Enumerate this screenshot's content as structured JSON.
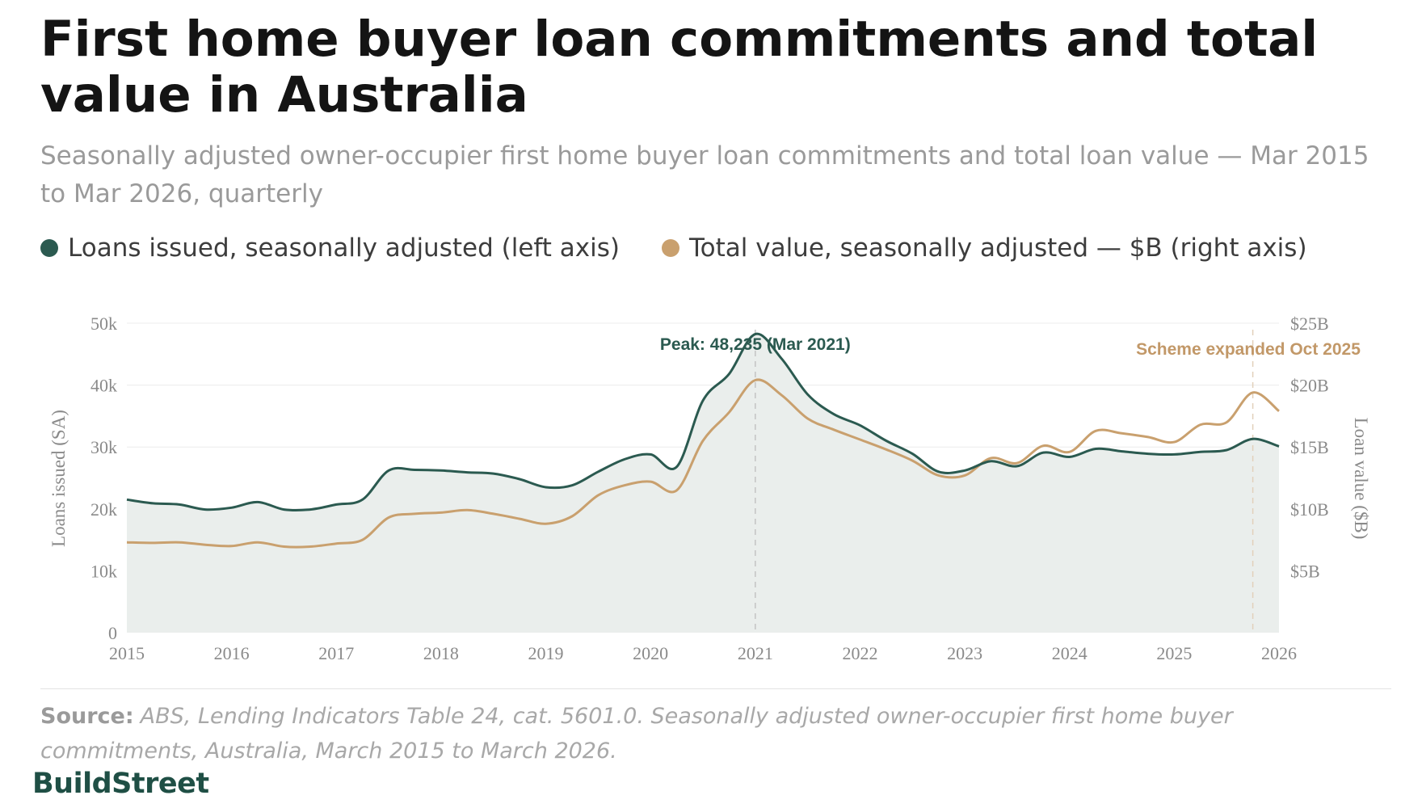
{
  "title": "First home buyer loan commitments and total value in Australia",
  "subtitle": "Seasonally adjusted owner-occupier first home buyer loan commitments and total loan value — Mar 2015 to Mar 2026, quarterly",
  "legend": {
    "loans_label": "Loans issued, seasonally adjusted (left axis)",
    "value_label": "Total value, seasonally adjusted — $B (right axis)"
  },
  "colors": {
    "loans": "#2b5a50",
    "value": "#c9a06e",
    "area_fill": "#eaeeec",
    "grid": "#ececec",
    "axis_text": "#8a8a8a"
  },
  "source": {
    "label": "Source:",
    "text": "ABS, Lending Indicators Table 24, cat. 5601.0. Seasonally adjusted owner-occupier first home buyer commitments, Australia, March 2015 to March 2026."
  },
  "brand": "BuildStreet",
  "chart_data": {
    "type": "line",
    "xlim": [
      2015,
      2026
    ],
    "x_ticks": [
      2015,
      2016,
      2017,
      2018,
      2019,
      2020,
      2021,
      2022,
      2023,
      2024,
      2025,
      2026
    ],
    "x_tick_labels": [
      "2015",
      "2016",
      "2017",
      "2018",
      "2019",
      "2020",
      "2021",
      "2022",
      "2023",
      "2024",
      "2025",
      "2026"
    ],
    "left_axis": {
      "label": "Loans issued (SA)",
      "range": [
        0,
        50000
      ],
      "ticks": [
        0,
        10000,
        20000,
        30000,
        40000,
        50000
      ],
      "tick_labels": [
        "0",
        "10k",
        "20k",
        "30k",
        "40k",
        "50k"
      ]
    },
    "right_axis": {
      "label": "Loan value ($B)",
      "range": [
        0,
        25
      ],
      "ticks": [
        5,
        10,
        15,
        20,
        25
      ],
      "tick_labels": [
        "$5B",
        "$10B",
        "$15B",
        "$20B",
        "$25B"
      ]
    },
    "grid": true,
    "legend_position": "top",
    "series": [
      {
        "name": "Loans issued, seasonally adjusted (left axis)",
        "axis": "left",
        "x": [
          2015.0,
          2015.25,
          2015.5,
          2015.75,
          2016.0,
          2016.25,
          2016.5,
          2016.75,
          2017.0,
          2017.25,
          2017.5,
          2017.75,
          2018.0,
          2018.25,
          2018.5,
          2018.75,
          2019.0,
          2019.25,
          2019.5,
          2019.75,
          2020.0,
          2020.25,
          2020.5,
          2020.75,
          2021.0,
          2021.25,
          2021.5,
          2021.75,
          2022.0,
          2022.25,
          2022.5,
          2022.75,
          2023.0,
          2023.25,
          2023.5,
          2023.75,
          2024.0,
          2024.25,
          2024.5,
          2024.75,
          2025.0,
          2025.25,
          2025.5,
          2025.75,
          2026.0
        ],
        "y": [
          21500,
          20900,
          20700,
          19900,
          20200,
          21100,
          19900,
          19900,
          20700,
          21500,
          26200,
          26300,
          26200,
          25900,
          25700,
          24800,
          23500,
          23800,
          26000,
          28000,
          28800,
          26800,
          37500,
          41800,
          48235,
          44300,
          38500,
          35300,
          33500,
          31000,
          28900,
          26000,
          26200,
          27700,
          26900,
          29100,
          28400,
          29700,
          29300,
          28900,
          28800,
          29200,
          29500,
          31300,
          30100
        ]
      },
      {
        "name": "Total value, seasonally adjusted — $B (right axis)",
        "axis": "right",
        "x": [
          2015.0,
          2015.25,
          2015.5,
          2015.75,
          2016.0,
          2016.25,
          2016.5,
          2016.75,
          2017.0,
          2017.25,
          2017.5,
          2017.75,
          2018.0,
          2018.25,
          2018.5,
          2018.75,
          2019.0,
          2019.25,
          2019.5,
          2019.75,
          2020.0,
          2020.25,
          2020.5,
          2020.75,
          2021.0,
          2021.25,
          2021.5,
          2021.75,
          2022.0,
          2022.25,
          2022.5,
          2022.75,
          2023.0,
          2023.25,
          2023.5,
          2023.75,
          2024.0,
          2024.25,
          2024.5,
          2024.75,
          2025.0,
          2025.25,
          2025.5,
          2025.75,
          2026.0
        ],
        "y": [
          7.3,
          7.25,
          7.3,
          7.1,
          7.0,
          7.3,
          6.95,
          6.95,
          7.2,
          7.5,
          9.3,
          9.6,
          9.7,
          9.9,
          9.6,
          9.2,
          8.8,
          9.4,
          11.1,
          11.9,
          12.2,
          11.5,
          15.5,
          17.8,
          20.4,
          19.2,
          17.3,
          16.4,
          15.6,
          14.8,
          13.9,
          12.7,
          12.7,
          14.1,
          13.7,
          15.1,
          14.6,
          16.3,
          16.1,
          15.8,
          15.4,
          16.8,
          17.0,
          19.4,
          17.9
        ]
      }
    ],
    "annotations": [
      {
        "text": "Peak: 48,235 (Mar 2021)",
        "x": 2021.0,
        "series": "loans"
      },
      {
        "text": "Scheme expanded Oct 2025",
        "x": 2025.75,
        "series": "value"
      }
    ]
  }
}
